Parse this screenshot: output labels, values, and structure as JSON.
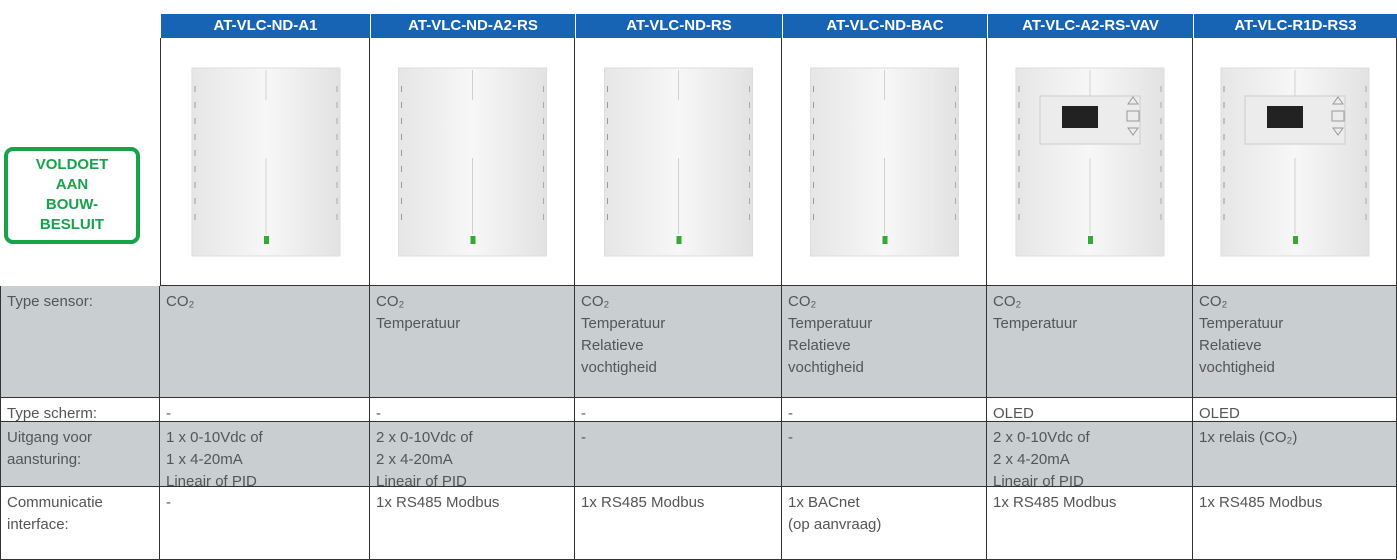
{
  "badge": {
    "lines": [
      "VOLDOET",
      "AAN",
      "BOUW-",
      "BESLUIT"
    ]
  },
  "products": [
    "AT-VLC-ND-A1",
    "AT-VLC-ND-A2-RS",
    "AT-VLC-ND-RS",
    "AT-VLC-ND-BAC",
    "AT-VLC-A2-RS-VAV",
    "AT-VLC-R1D-RS3"
  ],
  "rows": [
    {
      "label": [
        "Type sensor:"
      ],
      "cells": [
        [
          "CO₂"
        ],
        [
          "CO₂",
          "Temperatuur"
        ],
        [
          "CO₂",
          "Temperatuur",
          "Relatieve",
          "vochtigheid"
        ],
        [
          "CO₂",
          "Temperatuur",
          "Relatieve",
          "vochtigheid"
        ],
        [
          "CO₂",
          "Temperatuur"
        ],
        [
          "CO₂",
          "Temperatuur",
          "Relatieve",
          "vochtigheid"
        ]
      ]
    },
    {
      "label": [
        "Type scherm:"
      ],
      "cells": [
        [
          "-"
        ],
        [
          "-"
        ],
        [
          "-"
        ],
        [
          "-"
        ],
        [
          "OLED"
        ],
        [
          "OLED"
        ]
      ]
    },
    {
      "label": [
        "Uitgang voor",
        "aansturing:"
      ],
      "cells": [
        [
          "1 x 0-10Vdc of",
          "1 x 4-20mA",
          "Lineair of PID"
        ],
        [
          "2 x 0-10Vdc of",
          "2 x 4-20mA",
          "Lineair of PID"
        ],
        [
          "-"
        ],
        [
          "-"
        ],
        [
          "2 x 0-10Vdc of",
          "2 x 4-20mA",
          "Lineair of PID"
        ],
        [
          "1x relais (CO₂)"
        ]
      ]
    },
    {
      "label": [
        "Communicatie",
        "interface:"
      ],
      "cells": [
        [
          "-"
        ],
        [
          "1x RS485 Modbus"
        ],
        [
          "1x RS485 Modbus"
        ],
        [
          "1x BACnet",
          "(op aanvraag)"
        ],
        [
          "1x RS485 Modbus"
        ],
        [
          "1x RS485 Modbus"
        ]
      ]
    }
  ]
}
